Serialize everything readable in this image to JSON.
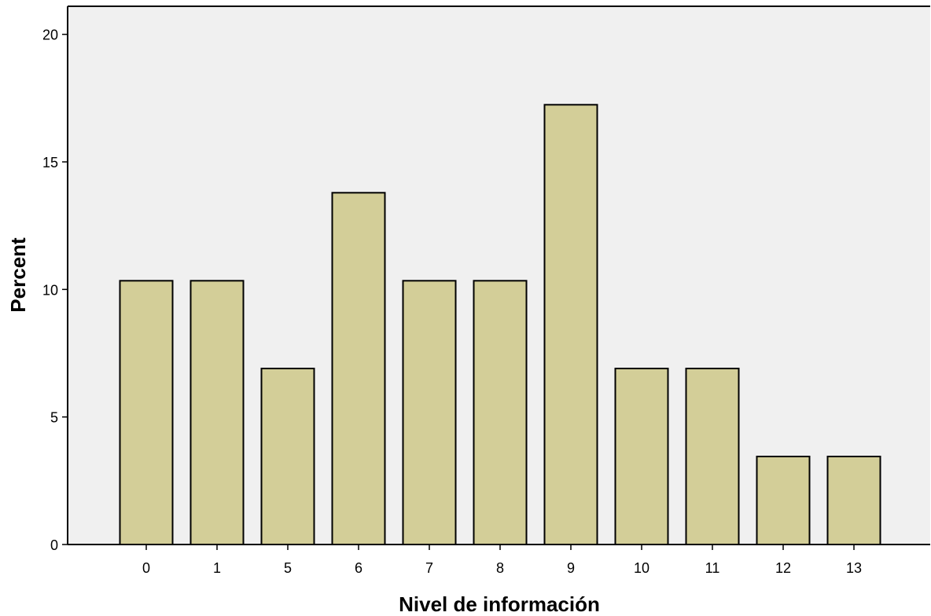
{
  "chart_data": {
    "type": "bar",
    "categories": [
      "0",
      "1",
      "5",
      "6",
      "7",
      "8",
      "9",
      "10",
      "11",
      "12",
      "13"
    ],
    "values": [
      10.34,
      10.34,
      6.9,
      13.79,
      10.34,
      10.34,
      17.24,
      6.9,
      6.9,
      3.45,
      3.45
    ],
    "xlabel": "Nivel de información",
    "ylabel": "Percent",
    "ylim": [
      0,
      21.1
    ],
    "yticks": [
      0,
      5,
      10,
      15,
      20
    ],
    "grid": false,
    "colors": {
      "bar_fill": "#d3ce98",
      "bar_stroke": "#000000",
      "plot_background": "#f0f0f0",
      "axis": "#000000"
    }
  }
}
